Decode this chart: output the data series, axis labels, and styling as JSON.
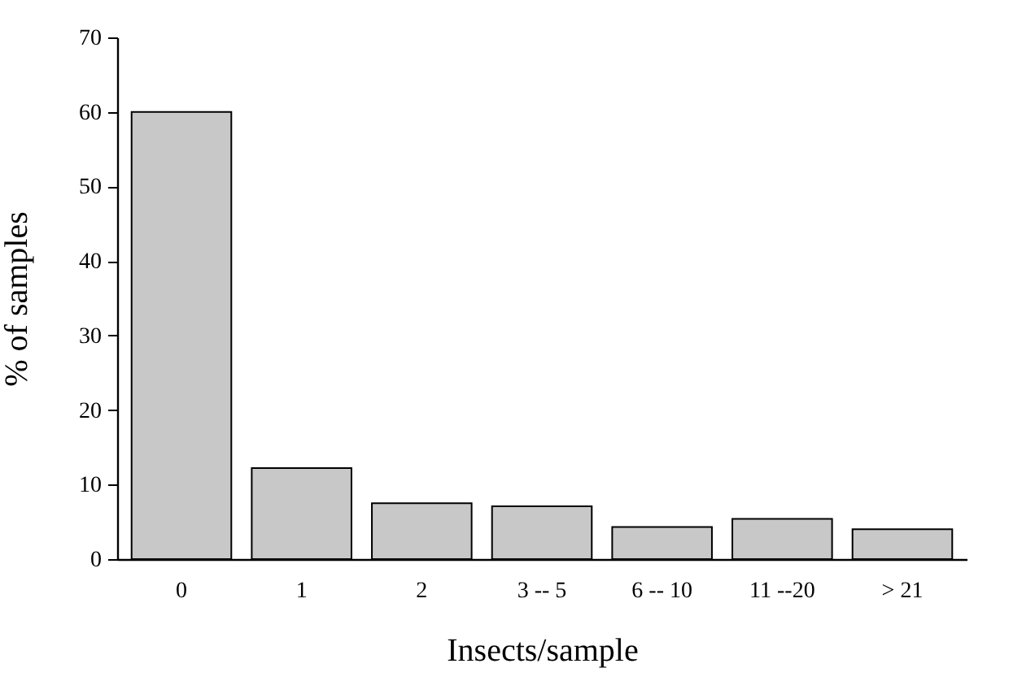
{
  "chart_data": {
    "type": "bar",
    "xlabel": "Insects/sample",
    "ylabel": "% of samples",
    "categories": [
      "0",
      "1",
      "2",
      "3 -- 5",
      "6 -- 10",
      "11 --20",
      "> 21"
    ],
    "values": [
      60,
      12.2,
      7.5,
      7.1,
      4.3,
      5.4,
      4.0
    ],
    "color": "#c8c8c8",
    "ylim": [
      0,
      70
    ],
    "yticks": [
      0,
      10,
      20,
      30,
      40,
      50,
      60,
      70
    ],
    "grid": false
  }
}
